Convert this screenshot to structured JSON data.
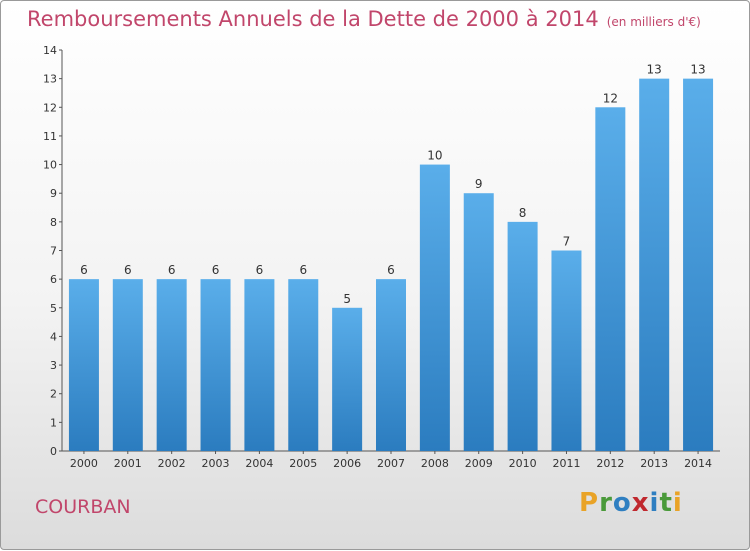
{
  "title": "Remboursements Annuels de la Dette de 2000 à 2014",
  "unit": "(en milliers d'€)",
  "commune": "COURBAN",
  "logo": {
    "letters": [
      "P",
      "r",
      "o",
      "x",
      "i",
      "t",
      "i"
    ],
    "colors": [
      "#e9a327",
      "#4a9a3a",
      "#2f7fc1",
      "#c0282e",
      "#2f7fc1",
      "#4a9a3a",
      "#e9a327"
    ]
  },
  "colors": {
    "bar_light": "#5aaeea",
    "bar_dark": "#2b7cbf",
    "title": "#c1466b"
  },
  "chart_data": {
    "type": "bar",
    "categories": [
      "2000",
      "2001",
      "2002",
      "2003",
      "2004",
      "2005",
      "2006",
      "2007",
      "2008",
      "2009",
      "2010",
      "2011",
      "2012",
      "2013",
      "2014"
    ],
    "values": [
      6,
      6,
      6,
      6,
      6,
      6,
      5,
      6,
      10,
      9,
      8,
      7,
      12,
      13,
      13
    ],
    "y_ticks": [
      "0",
      "1",
      "2",
      "3",
      "4",
      "5",
      "6",
      "7",
      "8",
      "9",
      "10",
      "11",
      "12",
      "13",
      "14"
    ],
    "ylim": [
      0,
      14
    ],
    "grid": false,
    "title": "Remboursements Annuels de la Dette de 2000 à 2014",
    "xlabel": "",
    "ylabel": ""
  }
}
